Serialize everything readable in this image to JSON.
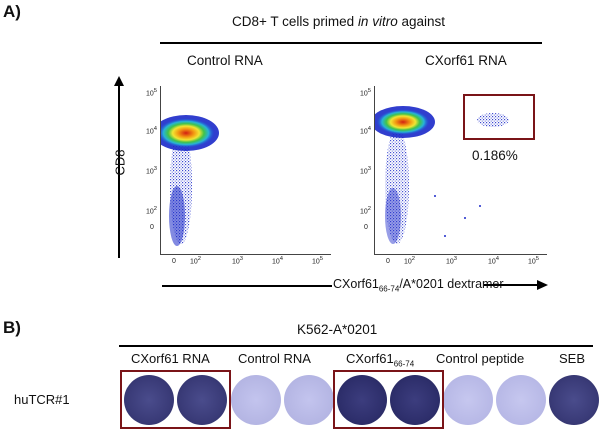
{
  "figure": {
    "panel_a": {
      "letter": "A)",
      "header_pre": "CD8+ T cells primed ",
      "header_em": "in vitro",
      "header_post": " against",
      "plots": [
        {
          "title": "Control RNA"
        },
        {
          "title": "CXorf61 RNA",
          "gate_percent": "0.186%"
        }
      ],
      "ylabel": "CD8",
      "xlabel_pre": "CXorf61",
      "xlabel_sub": "66-74",
      "xlabel_post": "/A*0201 dextramer",
      "y_ticks": {
        "t5": "10",
        "t4": "10",
        "t3": "10",
        "t2": "10",
        "t1": "0",
        "t0": "0",
        "e5": "5",
        "e4": "4",
        "e3": "3",
        "e2": "2"
      },
      "x_ticks": {
        "t0": "0",
        "t2": "10",
        "t3": "10",
        "t4": "10",
        "t5": "10",
        "e2": "2",
        "e3": "3",
        "e4": "4",
        "e5": "5"
      }
    },
    "panel_b": {
      "letter": "B)",
      "header": "K562-A*0201",
      "row_label": "huTCR#1",
      "conditions": [
        {
          "label": "CXorf61 RNA"
        },
        {
          "label": "Control RNA"
        },
        {
          "label_pre": "CXorf61",
          "label_sub": "66-74"
        },
        {
          "label": "Control peptide"
        },
        {
          "label": "SEB"
        }
      ],
      "colors": {
        "dark_well": "#3a3b78",
        "light_well": "#b9bae6",
        "gate": "#7a1418"
      }
    }
  }
}
